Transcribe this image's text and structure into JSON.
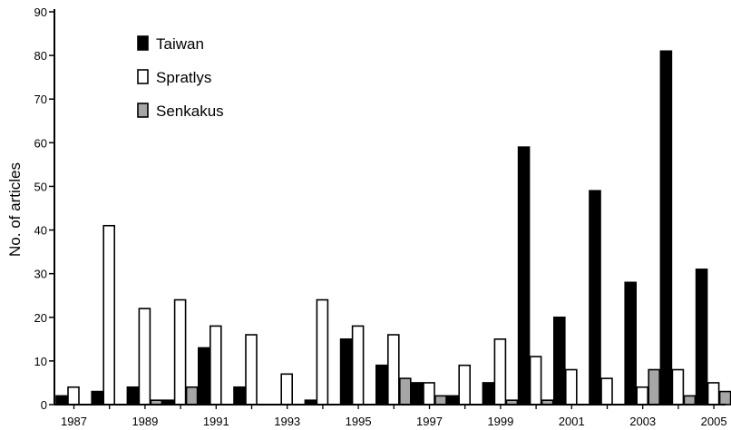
{
  "chart_data": {
    "type": "bar",
    "title": "",
    "xlabel": "",
    "ylabel": "No. of articles",
    "ylim": [
      0,
      90
    ],
    "yticks": [
      0,
      10,
      20,
      30,
      40,
      50,
      60,
      70,
      80,
      90
    ],
    "categories": [
      "1987",
      "1988",
      "1989",
      "1990",
      "1991",
      "1992",
      "1993",
      "1994",
      "1995",
      "1996",
      "1997",
      "1998",
      "1999",
      "2000",
      "2001",
      "2002",
      "2003",
      "2004",
      "2005"
    ],
    "xtick_labels": [
      "1987",
      "1989",
      "1991",
      "1993",
      "1995",
      "1997",
      "1999",
      "2001",
      "2003",
      "2005"
    ],
    "legend_position": "top-left",
    "grid": false,
    "series": [
      {
        "name": "Taiwan",
        "color": "#000000",
        "values": [
          2,
          3,
          4,
          1,
          13,
          4,
          0,
          1,
          15,
          9,
          5,
          2,
          5,
          59,
          20,
          49,
          28,
          81,
          31
        ]
      },
      {
        "name": "Spratlys",
        "color": "#ffffff",
        "values": [
          4,
          41,
          22,
          24,
          18,
          16,
          7,
          24,
          18,
          16,
          5,
          9,
          15,
          11,
          8,
          6,
          4,
          8,
          5
        ]
      },
      {
        "name": "Senkakus",
        "color": "#a6a6a6",
        "values": [
          0,
          0,
          1,
          4,
          0,
          0,
          0,
          0,
          0,
          6,
          2,
          0,
          1,
          1,
          0,
          0,
          8,
          2,
          3
        ]
      }
    ]
  }
}
